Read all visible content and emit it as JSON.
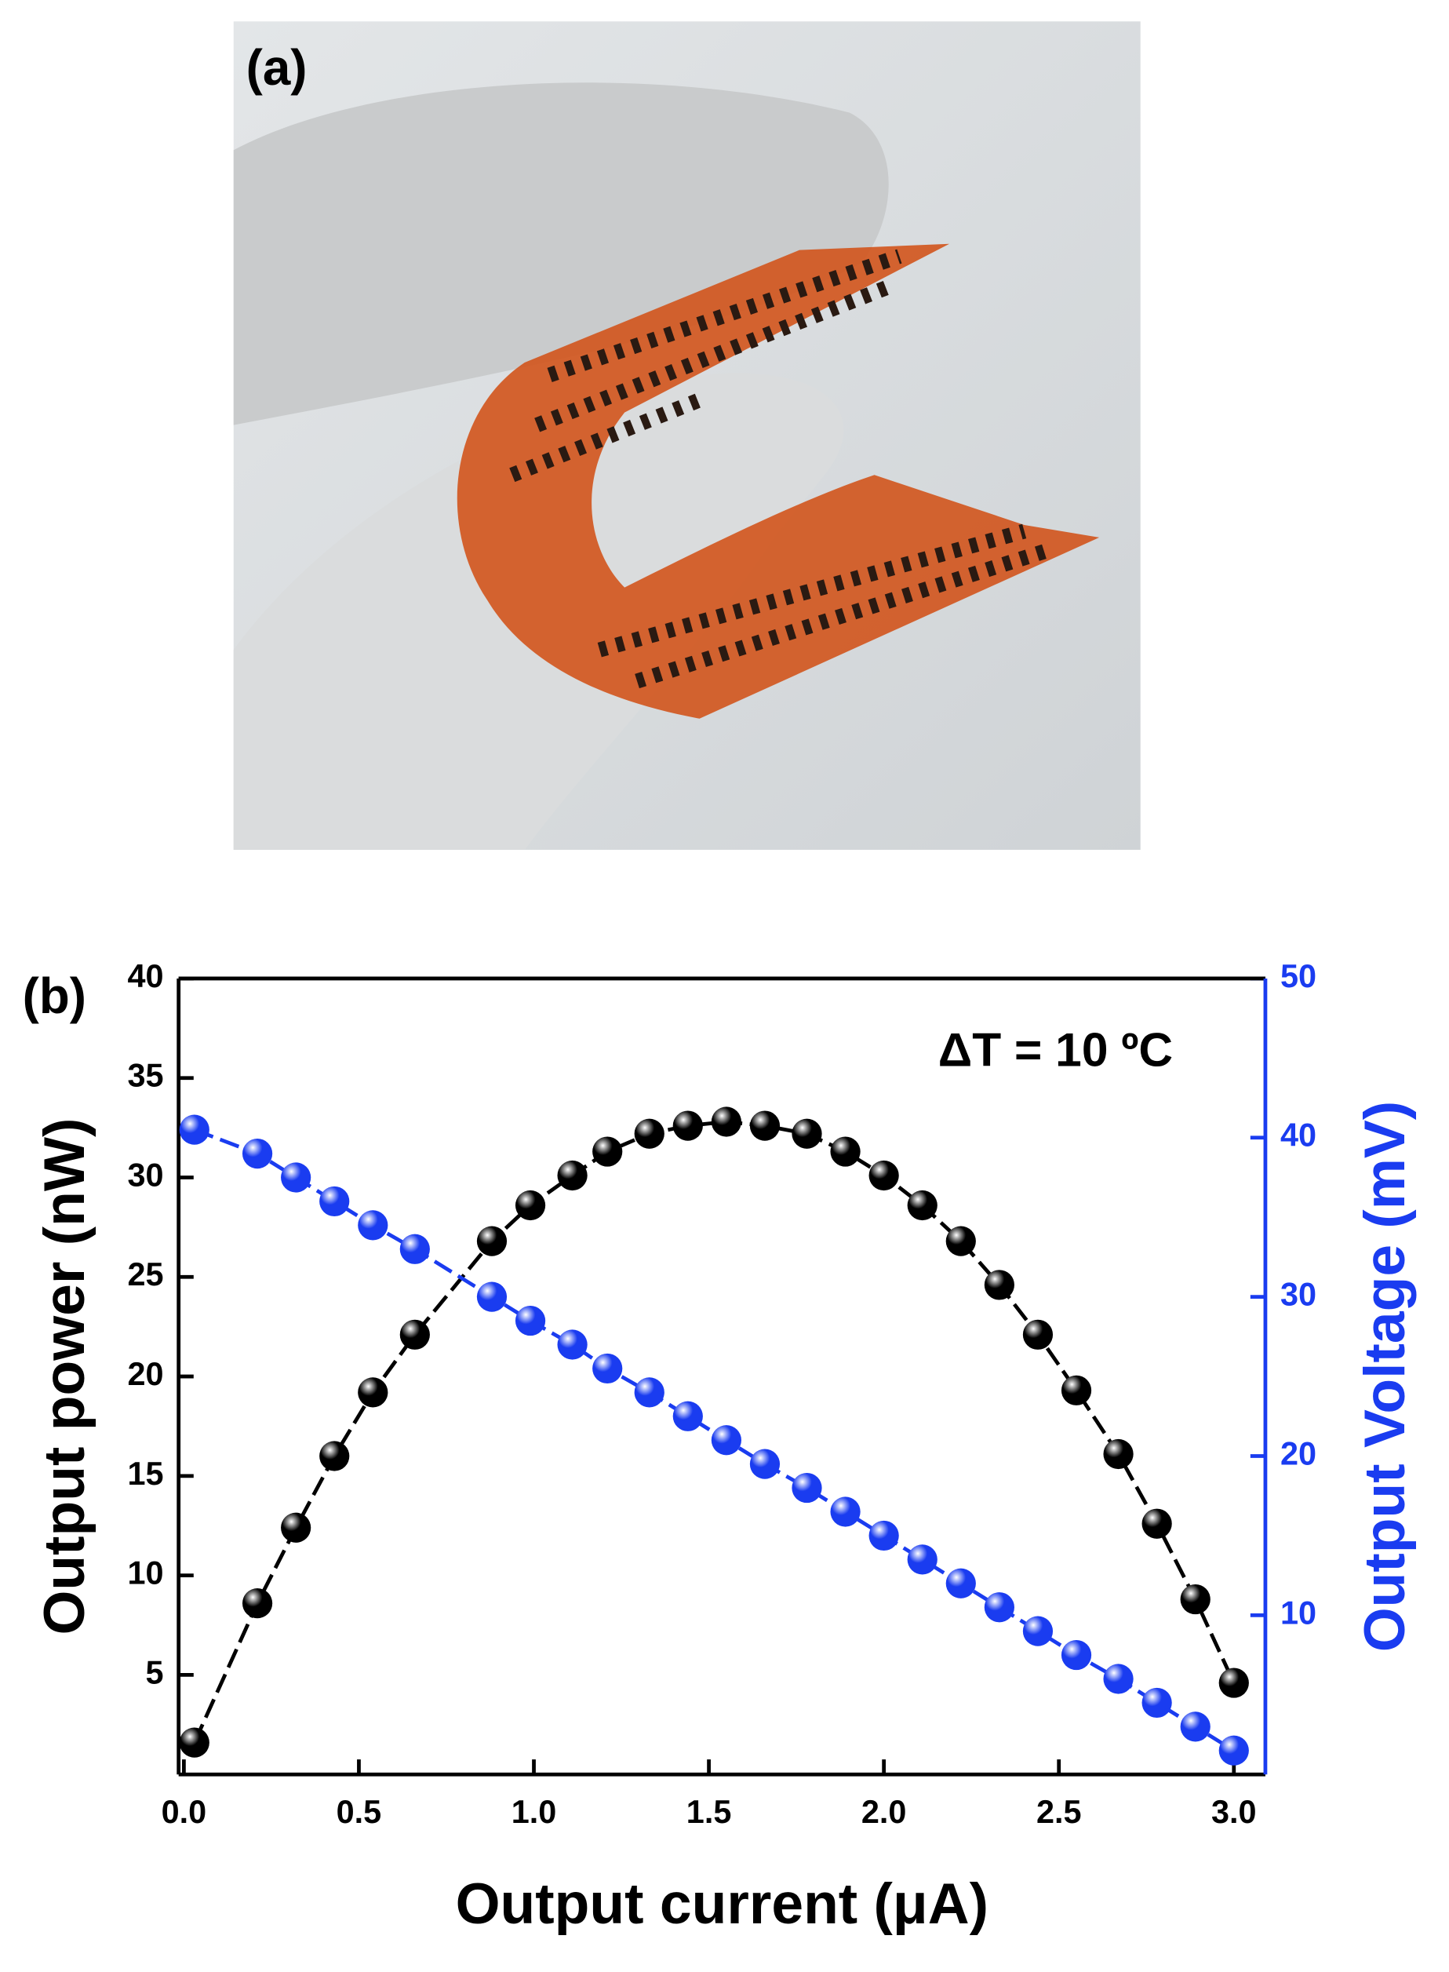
{
  "photo": {
    "label": "(a)"
  },
  "chart_data": {
    "type": "scatter",
    "panel_label": "(b)",
    "annotation": "ΔT = 10 ºC",
    "xlabel": "Output current (μA)",
    "ylabel": "Output power (nW)",
    "y2label": "Output Voltage (mV)",
    "x": [
      0.03,
      0.21,
      0.32,
      0.43,
      0.54,
      0.66,
      0.88,
      0.99,
      1.11,
      1.21,
      1.33,
      1.44,
      1.55,
      1.66,
      1.78,
      1.89,
      2.0,
      2.11,
      2.22,
      2.33,
      2.44,
      2.55,
      2.67,
      2.78,
      2.89,
      3.0
    ],
    "series": [
      {
        "name": "Output power",
        "color": "#000000",
        "axis": "y",
        "values": [
          1.6,
          8.6,
          12.4,
          16.0,
          19.2,
          22.1,
          26.8,
          28.6,
          30.1,
          31.3,
          32.2,
          32.6,
          32.8,
          32.6,
          32.2,
          31.3,
          30.1,
          28.6,
          26.8,
          24.6,
          22.1,
          19.3,
          16.1,
          12.6,
          8.8,
          4.6
        ]
      },
      {
        "name": "Output voltage",
        "color": "#1a3cf0",
        "axis": "y2",
        "values": [
          40.5,
          39,
          37.5,
          36,
          34.5,
          33,
          30,
          28.5,
          27,
          25.5,
          24,
          22.5,
          21,
          19.5,
          18,
          16.5,
          15,
          13.5,
          12,
          10.5,
          9,
          7.5,
          6,
          4.5,
          3,
          1.5
        ]
      }
    ],
    "xlim": [
      -0.015,
      3.09
    ],
    "xticks": [
      {
        "value": 0,
        "label": "0.0"
      },
      0.5,
      {
        "value": 1,
        "label": "1.0"
      },
      1.5,
      {
        "value": 2,
        "label": "2.0"
      },
      2.5,
      {
        "value": 3,
        "label": "3.0"
      }
    ],
    "ylim": [
      0,
      40
    ],
    "yticks": [
      5,
      10,
      15,
      20,
      25,
      30,
      35,
      40
    ],
    "y2lim": [
      0,
      50
    ],
    "y2ticks": [
      10,
      20,
      30,
      40,
      50
    ]
  }
}
